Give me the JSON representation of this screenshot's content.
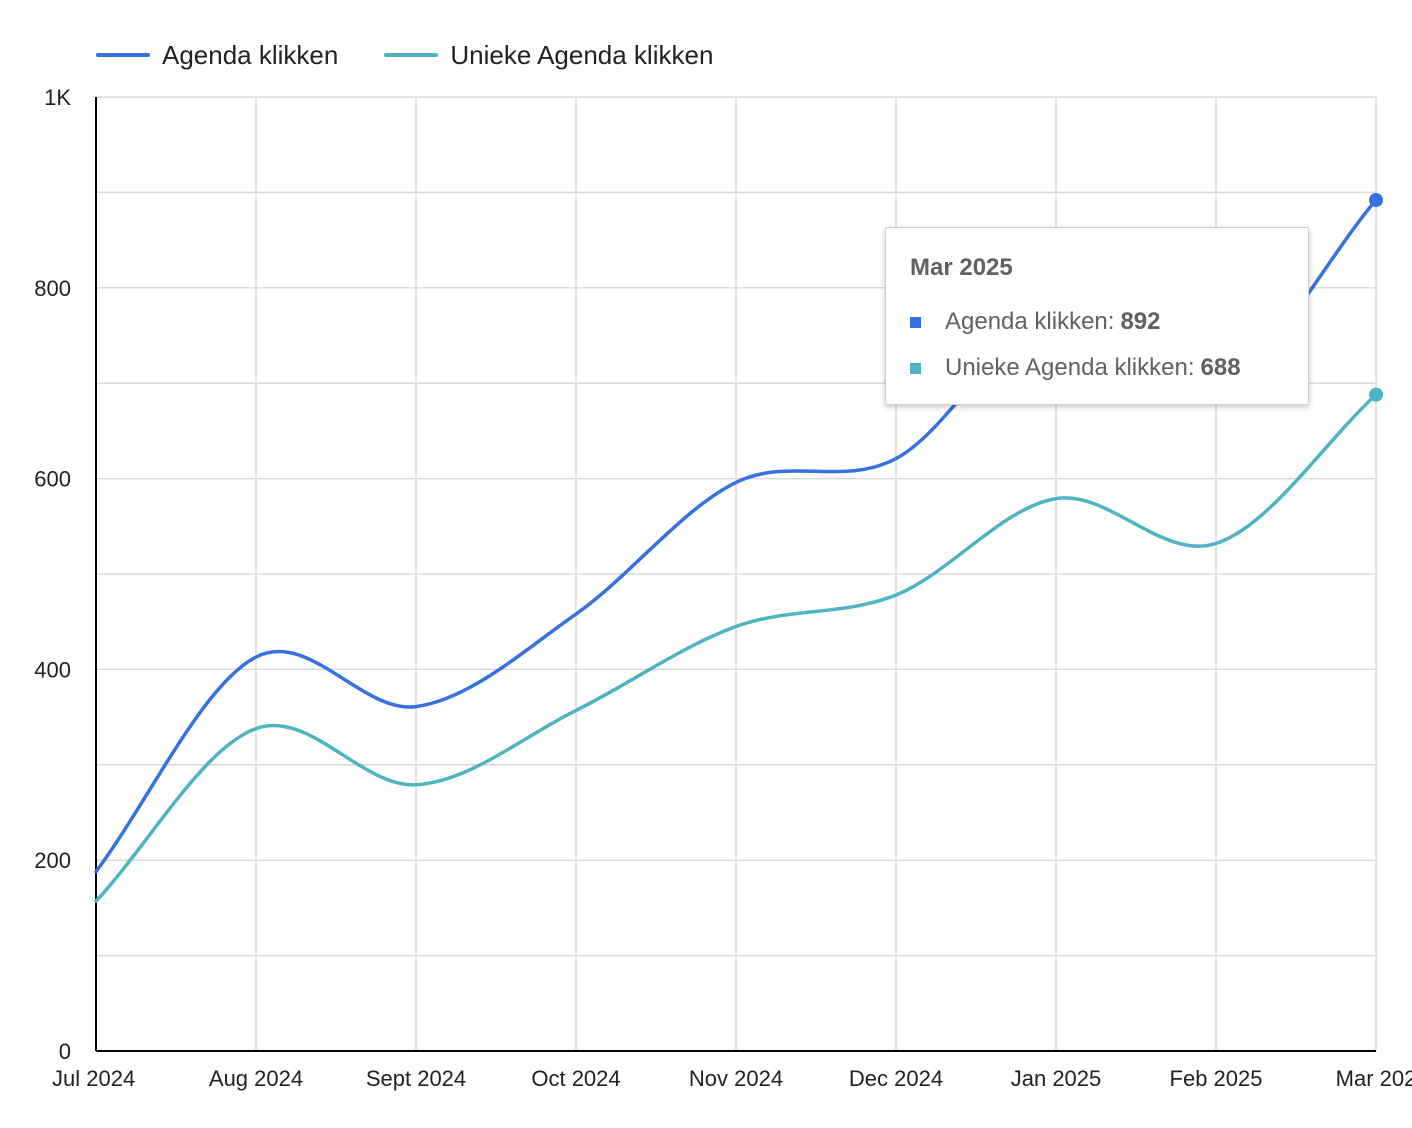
{
  "legend": {
    "series_1": "Agenda klikken",
    "series_2": "Unieke Agenda klikken"
  },
  "colors": {
    "series_1": "#3771e0",
    "series_2": "#4eb3c2",
    "grid": "#d9d9d9",
    "axis": "#000000",
    "text": "#222222"
  },
  "tooltip": {
    "title": "Mar 2025",
    "rows": [
      {
        "label": "Agenda klikken:",
        "value": "892"
      },
      {
        "label": "Unieke Agenda klikken:",
        "value": "688"
      }
    ]
  },
  "chart_data": {
    "type": "line",
    "categories": [
      "Jul 2024",
      "Aug 2024",
      "Sept 2024",
      "Oct 2024",
      "Nov 2024",
      "Dec 2024",
      "Jan 2025",
      "Feb 2025",
      "Mar 202"
    ],
    "series": [
      {
        "name": "Agenda klikken",
        "values": [
          188,
          413,
          361,
          458,
          596,
          621,
          773,
          694,
          892
        ]
      },
      {
        "name": "Unieke Agenda klikken",
        "values": [
          157,
          338,
          279,
          357,
          445,
          478,
          579,
          532,
          688
        ]
      }
    ],
    "y_ticks": [
      "0",
      "200",
      "400",
      "600",
      "800",
      "1K"
    ],
    "ylim": [
      0,
      1000
    ],
    "grid": true,
    "legend_position": "top-left",
    "smooth": true,
    "highlighted_category": "Mar 202"
  }
}
